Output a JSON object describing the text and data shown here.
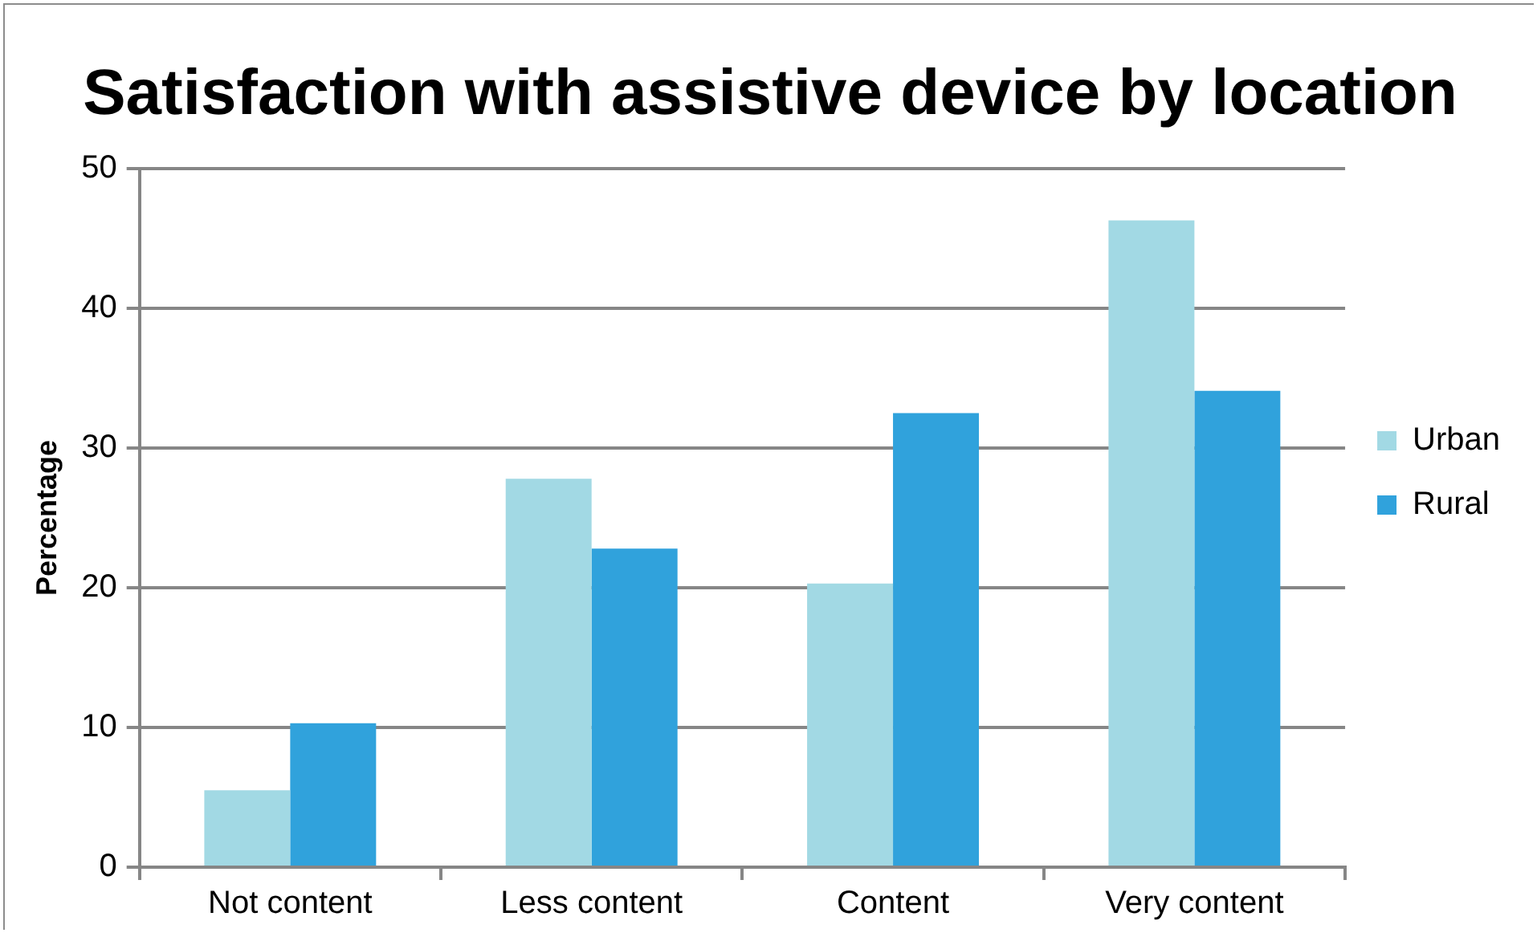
{
  "chart_data": {
    "type": "bar",
    "title": "Satisfaction with assistive device by location",
    "ylabel": "Percentage",
    "categories": [
      "Not content",
      "Less content",
      "Content",
      "Very content"
    ],
    "series": [
      {
        "name": "Urban",
        "color": "#a2d9e4",
        "values": [
          5.5,
          27.8,
          20.3,
          46.3
        ]
      },
      {
        "name": "Rural",
        "color": "#30a2dc",
        "values": [
          10.3,
          22.8,
          32.5,
          34.1
        ]
      }
    ],
    "ylim": [
      0,
      50
    ],
    "yticks": [
      0,
      10,
      20,
      30,
      40,
      50
    ],
    "grid": "y",
    "legend": "right"
  }
}
